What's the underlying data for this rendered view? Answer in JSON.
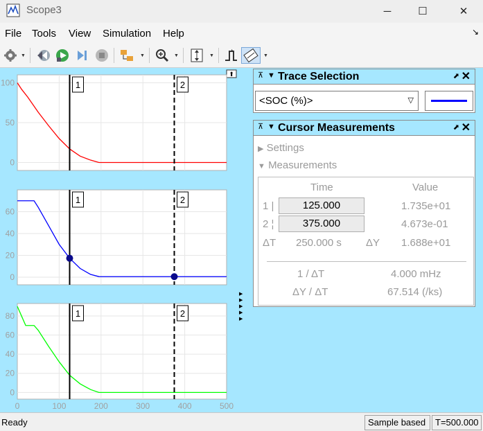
{
  "window": {
    "title": "Scope3",
    "minimize_glyph": "─",
    "maximize_glyph": "☐",
    "close_glyph": "✕"
  },
  "menu": {
    "items": [
      "File",
      "Tools",
      "View",
      "Simulation",
      "Help"
    ],
    "overflow_arrow": "↘"
  },
  "toolbar": {
    "icons": [
      "settings-icon",
      "step-back-icon",
      "run-icon",
      "step-forward-icon",
      "stop-icon",
      "highlight-simulink-block-icon",
      "zoom-icon",
      "autoscale-icon",
      "triggers-icon",
      "cursor-measurements-icon"
    ]
  },
  "plots": {
    "dock_glyph": "⬆",
    "cursor_labels": [
      "1",
      "2"
    ],
    "x_ticks": [
      "0",
      "100",
      "200",
      "300",
      "400",
      "500"
    ],
    "panels": [
      {
        "y_ticks": [
          "100",
          "50",
          "0"
        ],
        "color": "#ff0000"
      },
      {
        "y_ticks": [
          "60",
          "40",
          "20",
          "0"
        ],
        "color": "#0000ff"
      },
      {
        "y_ticks": [
          "80",
          "60",
          "40",
          "20",
          "0"
        ],
        "color": "#00ff00"
      }
    ]
  },
  "chart_data": [
    {
      "type": "line",
      "title": "",
      "xlabel": "",
      "ylabel": "",
      "xlim": [
        0,
        500
      ],
      "ylim": [
        -10,
        110
      ],
      "grid": true,
      "series": [
        {
          "color": "#ff0000",
          "x": [
            0,
            10,
            25,
            50,
            75,
            100,
            125,
            150,
            175,
            195,
            300,
            500
          ],
          "y": [
            100,
            92,
            82,
            63,
            46,
            30,
            17,
            8,
            3,
            0,
            0,
            0
          ]
        }
      ],
      "cursors": [
        {
          "label": "1",
          "x": 125,
          "style": "solid"
        },
        {
          "label": "2",
          "x": 375,
          "style": "dashed"
        }
      ]
    },
    {
      "type": "line",
      "title": "",
      "xlabel": "",
      "ylabel": "",
      "xlim": [
        0,
        500
      ],
      "ylim": [
        -7,
        80
      ],
      "grid": true,
      "series": [
        {
          "color": "#0000ff",
          "x": [
            0,
            40,
            50,
            75,
            100,
            125,
            150,
            175,
            195,
            300,
            500
          ],
          "y": [
            70,
            70,
            64,
            47,
            30,
            17.35,
            8,
            2.5,
            0.5,
            0.47,
            0.47
          ]
        }
      ],
      "cursors": [
        {
          "label": "1",
          "x": 125,
          "style": "solid"
        },
        {
          "label": "2",
          "x": 375,
          "style": "dashed"
        }
      ],
      "markers": [
        {
          "x": 125,
          "y": 17.35
        },
        {
          "x": 375,
          "y": 0.4673
        }
      ]
    },
    {
      "type": "line",
      "title": "",
      "xlabel": "",
      "ylabel": "",
      "xlim": [
        0,
        500
      ],
      "ylim": [
        -7,
        93
      ],
      "grid": true,
      "series": [
        {
          "color": "#00ff00",
          "x": [
            0,
            10,
            20,
            40,
            50,
            75,
            100,
            125,
            150,
            175,
            195,
            300,
            500
          ],
          "y": [
            90,
            80,
            70,
            70,
            65,
            48,
            32,
            18,
            9,
            3,
            0,
            0,
            0
          ]
        }
      ],
      "cursors": [
        {
          "label": "1",
          "x": 125,
          "style": "solid"
        },
        {
          "label": "2",
          "x": 375,
          "style": "dashed"
        }
      ]
    }
  ],
  "trace_selection": {
    "title": "Trace Selection",
    "selected": "<SOC (%)>",
    "line_color": "#0000ff"
  },
  "cursor_measurements": {
    "title": "Cursor Measurements",
    "settings_label": "Settings",
    "measurements_label": "Measurements",
    "time_header": "Time",
    "value_header": "Value",
    "cursor1_label": "1 |",
    "cursor2_label": "2 ¦",
    "cursor1_time": "125.000",
    "cursor2_time": "375.000",
    "cursor1_value": "1.735e+01",
    "cursor2_value": "4.673e-01",
    "delta_t_label": "ΔT",
    "delta_t_value": "250.000 s",
    "delta_y_label": "ΔY",
    "delta_y_value": "1.688e+01",
    "inv_dt_label": "1 / ΔT",
    "inv_dt_value": "4.000 mHz",
    "dy_dt_label": "ΔY / ΔT",
    "dy_dt_value": "67.514 (/ks)"
  },
  "status": {
    "ready": "Ready",
    "mode": "Sample based",
    "time": "T=500.000"
  },
  "colors": {
    "background": "#a6e7ff",
    "panel_header": "#a6e7ff"
  }
}
